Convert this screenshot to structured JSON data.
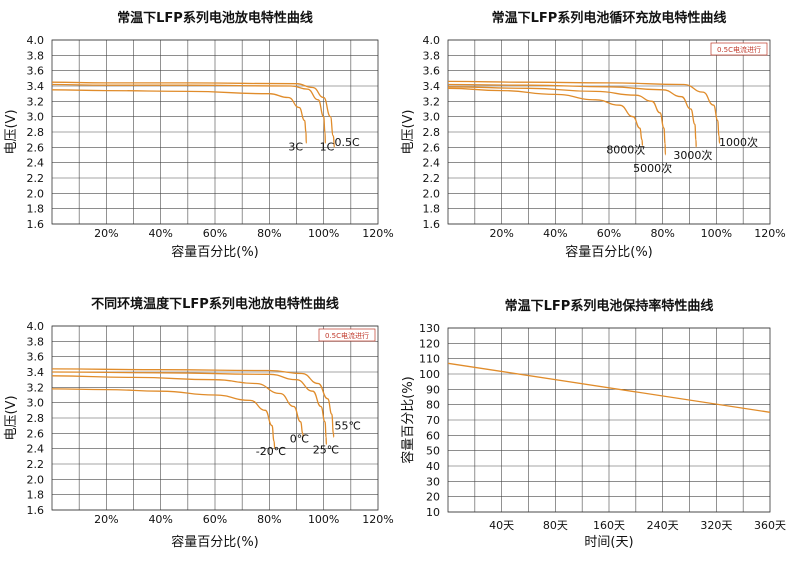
{
  "chart_data": [
    {
      "type": "line",
      "title": "常温下LFP系列电池放电特性曲线",
      "xlabel": "容量百分比(%)",
      "ylabel": "电压(V)",
      "xlim": [
        0,
        120
      ],
      "ylim": [
        1.6,
        4.0
      ],
      "xticks": [
        "20%",
        "40%",
        "60%",
        "80%",
        "100%",
        "120%"
      ],
      "yticks": [
        "1.6",
        "1.8",
        "2.0",
        "2.2",
        "2.4",
        "2.6",
        "2.8",
        "3.0",
        "3.2",
        "3.4",
        "3.6",
        "3.8",
        "4.0"
      ],
      "grid": true,
      "note": "",
      "series": [
        {
          "name": "0.5C",
          "label_pos": [
            104,
            2.62
          ],
          "points": [
            [
              0,
              3.45
            ],
            [
              20,
              3.44
            ],
            [
              50,
              3.44
            ],
            [
              90,
              3.43
            ],
            [
              96,
              3.38
            ],
            [
              100,
              3.25
            ],
            [
              102.5,
              3.0
            ],
            [
              103.5,
              2.75
            ],
            [
              104,
              2.6
            ]
          ]
        },
        {
          "name": "1C",
          "label_pos": [
            98.5,
            2.56
          ],
          "points": [
            [
              0,
              3.42
            ],
            [
              20,
              3.41
            ],
            [
              50,
              3.41
            ],
            [
              88,
              3.4
            ],
            [
              94,
              3.36
            ],
            [
              98,
              3.22
            ],
            [
              100,
              3.0
            ],
            [
              100.5,
              2.8
            ],
            [
              100.6,
              2.65
            ]
          ]
        },
        {
          "name": "3C",
          "label_pos": [
            87,
            2.56
          ],
          "points": [
            [
              0,
              3.35
            ],
            [
              20,
              3.34
            ],
            [
              50,
              3.33
            ],
            [
              80,
              3.3
            ],
            [
              87,
              3.25
            ],
            [
              91,
              3.12
            ],
            [
              93,
              2.95
            ],
            [
              93.5,
              2.8
            ],
            [
              93.6,
              2.65
            ]
          ]
        }
      ]
    },
    {
      "type": "line",
      "title": "常温下LFP系列电池循环充放电特性曲线",
      "xlabel": "容量百分比(%)",
      "ylabel": "电压(V)",
      "xlim": [
        0,
        120
      ],
      "ylim": [
        1.6,
        4.0
      ],
      "xticks": [
        "20%",
        "40%",
        "60%",
        "80%",
        "100%",
        "120%"
      ],
      "yticks": [
        "1.6",
        "1.8",
        "2.0",
        "2.2",
        "2.4",
        "2.6",
        "2.8",
        "3.0",
        "3.2",
        "3.4",
        "3.6",
        "3.8",
        "4.0"
      ],
      "grid": true,
      "note": "0.5C电流进行",
      "series": [
        {
          "name": "1000次",
          "label_pos": [
            101,
            2.62
          ],
          "points": [
            [
              0,
              3.46
            ],
            [
              30,
              3.45
            ],
            [
              60,
              3.44
            ],
            [
              88,
              3.42
            ],
            [
              95,
              3.32
            ],
            [
              99,
              3.15
            ],
            [
              100.5,
              2.95
            ],
            [
              101,
              2.75
            ],
            [
              101.2,
              2.65
            ]
          ]
        },
        {
          "name": "3000次",
          "label_pos": [
            84,
            2.45
          ],
          "points": [
            [
              0,
              3.42
            ],
            [
              30,
              3.41
            ],
            [
              60,
              3.39
            ],
            [
              80,
              3.35
            ],
            [
              87,
              3.26
            ],
            [
              90.5,
              3.1
            ],
            [
              92,
              2.9
            ],
            [
              92.4,
              2.7
            ],
            [
              92.5,
              2.6
            ]
          ]
        },
        {
          "name": "5000次",
          "label_pos": [
            69,
            2.28
          ],
          "points": [
            [
              0,
              3.39
            ],
            [
              30,
              3.37
            ],
            [
              55,
              3.33
            ],
            [
              70,
              3.28
            ],
            [
              76,
              3.2
            ],
            [
              79,
              3.05
            ],
            [
              80.5,
              2.85
            ],
            [
              80.9,
              2.65
            ],
            [
              81,
              2.5
            ]
          ]
        },
        {
          "name": "8000次",
          "label_pos": [
            59,
            2.52
          ],
          "points": [
            [
              0,
              3.37
            ],
            [
              20,
              3.34
            ],
            [
              40,
              3.29
            ],
            [
              55,
              3.22
            ],
            [
              64,
              3.15
            ],
            [
              69,
              3.0
            ],
            [
              71.5,
              2.85
            ],
            [
              72.3,
              2.7
            ],
            [
              72.5,
              2.62
            ]
          ]
        }
      ]
    },
    {
      "type": "line",
      "title": "不同环境温度下LFP系列电池放电特性曲线",
      "xlabel": "容量百分比(%)",
      "ylabel": "电压(V)",
      "xlim": [
        0,
        120
      ],
      "ylim": [
        1.6,
        4.0
      ],
      "xticks": [
        "20%",
        "40%",
        "60%",
        "80%",
        "100%",
        "120%"
      ],
      "yticks": [
        "1.6",
        "1.8",
        "2.0",
        "2.2",
        "2.4",
        "2.6",
        "2.8",
        "3.0",
        "3.2",
        "3.4",
        "3.6",
        "3.8",
        "4.0"
      ],
      "grid": true,
      "note": "0.5C电流进行",
      "series": [
        {
          "name": "55℃",
          "label_pos": [
            104,
            2.65
          ],
          "points": [
            [
              0,
              3.44
            ],
            [
              40,
              3.43
            ],
            [
              80,
              3.42
            ],
            [
              92,
              3.38
            ],
            [
              98,
              3.25
            ],
            [
              101.5,
              3.05
            ],
            [
              103,
              2.85
            ],
            [
              103.6,
              2.6
            ],
            [
              103.7,
              2.55
            ]
          ]
        },
        {
          "name": "25℃",
          "label_pos": [
            96,
            2.34
          ],
          "points": [
            [
              0,
              3.4
            ],
            [
              40,
              3.39
            ],
            [
              80,
              3.37
            ],
            [
              90,
              3.3
            ],
            [
              96,
              3.15
            ],
            [
              99,
              2.95
            ],
            [
              100.5,
              2.75
            ],
            [
              100.9,
              2.55
            ],
            [
              101,
              2.45
            ]
          ]
        },
        {
          "name": "0℃",
          "label_pos": [
            87.5,
            2.48
          ],
          "points": [
            [
              0,
              3.35
            ],
            [
              30,
              3.33
            ],
            [
              60,
              3.3
            ],
            [
              75,
              3.25
            ],
            [
              84,
              3.12
            ],
            [
              89,
              2.95
            ],
            [
              91.5,
              2.75
            ],
            [
              92.3,
              2.6
            ],
            [
              92.5,
              2.55
            ]
          ]
        },
        {
          "name": "-20℃",
          "label_pos": [
            75,
            2.32
          ],
          "points": [
            [
              0,
              3.18
            ],
            [
              20,
              3.17
            ],
            [
              40,
              3.15
            ],
            [
              60,
              3.1
            ],
            [
              73,
              3.03
            ],
            [
              78.5,
              2.9
            ],
            [
              81,
              2.7
            ],
            [
              81.7,
              2.5
            ],
            [
              82,
              2.4
            ]
          ]
        }
      ]
    },
    {
      "type": "line",
      "title": "常温下LFP系列电池保持率特性曲线",
      "xlabel": "时间(天)",
      "ylabel": "容量百分比(%)",
      "categories": [
        "",
        "40天",
        "80天",
        "160天",
        "240天",
        "320天",
        "360天"
      ],
      "ylim": [
        10,
        130
      ],
      "yticks": [
        "10",
        "20",
        "30",
        "40",
        "50",
        "60",
        "70",
        "80",
        "90",
        "100",
        "110",
        "120",
        "130"
      ],
      "grid": true,
      "note": "",
      "series": [
        {
          "name": "",
          "points": [
            [
              0,
              107
            ],
            [
              6,
              75
            ]
          ]
        }
      ]
    }
  ]
}
